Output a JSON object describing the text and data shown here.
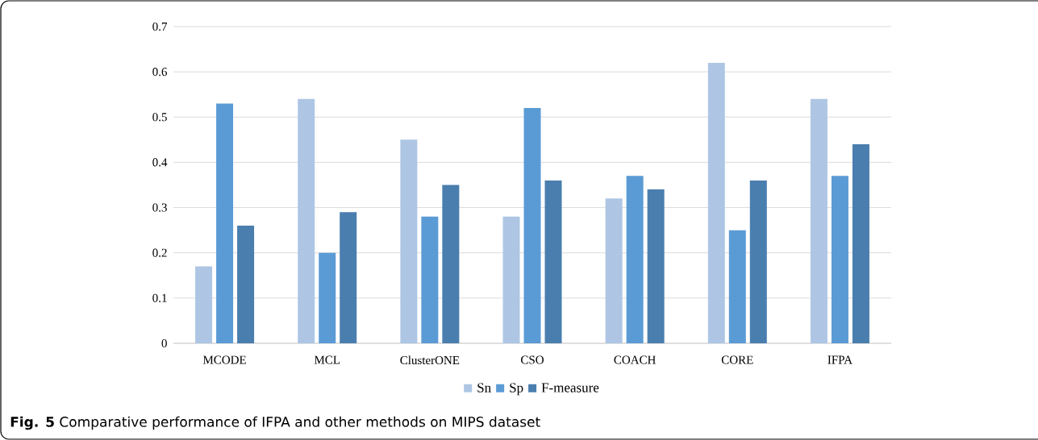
{
  "chart_data": {
    "type": "bar",
    "categories": [
      "MCODE",
      "MCL",
      "ClusterONE",
      "CSO",
      "COACH",
      "CORE",
      "IFPA"
    ],
    "series": [
      {
        "name": "Sn",
        "color": "#aec6e4",
        "values": [
          0.17,
          0.54,
          0.45,
          0.28,
          0.32,
          0.62,
          0.54
        ]
      },
      {
        "name": "Sp",
        "color": "#5b9bd5",
        "values": [
          0.53,
          0.2,
          0.28,
          0.52,
          0.37,
          0.25,
          0.37
        ]
      },
      {
        "name": "F-measure",
        "color": "#4a7eae",
        "values": [
          0.26,
          0.29,
          0.35,
          0.36,
          0.34,
          0.36,
          0.44
        ]
      }
    ],
    "ylim": [
      0,
      0.7
    ],
    "yticks": [
      0,
      0.1,
      0.2,
      0.3,
      0.4,
      0.5,
      0.6,
      0.7
    ],
    "grid": "y",
    "legend": "bottom",
    "annotations": [
      "**Fig. 5** Comparative performance of IFPA and other methods on MIPS dataset"
    ]
  }
}
